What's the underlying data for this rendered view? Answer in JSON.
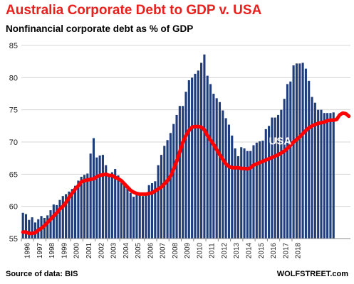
{
  "chart_data": {
    "type": "bar",
    "title": "Australia Corporate Debt to GDP v. USA",
    "subtitle": "Nonfinancial corporate debt as % of GDP",
    "xlabel": "",
    "ylabel": "",
    "ylim": [
      55,
      85
    ],
    "yticks": [
      55,
      60,
      65,
      70,
      75,
      80,
      85
    ],
    "grid": true,
    "legend": "none",
    "x_tick_labels": [
      "1996",
      "1997",
      "1998",
      "1999",
      "2000",
      "2001",
      "2002",
      "2003",
      "2004",
      "2005",
      "2006",
      "2007",
      "2008",
      "2009",
      "2010",
      "2011",
      "2012",
      "2013",
      "2014",
      "2015",
      "2016",
      "2017",
      "2018"
    ],
    "bar_color": "#1f3d7a",
    "line_color": "#ff0000",
    "series": [
      {
        "name": "",
        "type": "bar",
        "frequency": "quarterly",
        "start": "1996-Q1",
        "values": [
          59.0,
          58.8,
          57.9,
          58.3,
          57.5,
          58.0,
          58.5,
          58.2,
          58.6,
          59.4,
          60.3,
          60.2,
          61.0,
          61.6,
          61.9,
          62.3,
          62.7,
          63.2,
          64.0,
          64.6,
          64.9,
          65.1,
          68.2,
          70.6,
          67.6,
          67.9,
          68.0,
          66.4,
          65.0,
          65.3,
          65.8,
          64.8,
          63.7,
          63.3,
          62.8,
          62.1,
          61.5,
          61.9,
          61.8,
          61.6,
          61.8,
          63.3,
          63.6,
          63.9,
          66.4,
          68.0,
          69.4,
          70.3,
          71.4,
          72.8,
          74.2,
          75.6,
          75.6,
          77.8,
          79.6,
          80.0,
          80.6,
          81.1,
          82.3,
          83.6,
          80.3,
          79.0,
          77.5,
          76.8,
          76.2,
          74.9,
          73.7,
          72.7,
          71.0,
          69.0,
          67.8,
          69.2,
          69.0,
          68.6,
          68.6,
          69.5,
          69.9,
          70.1,
          70.2,
          72.0,
          72.5,
          73.8,
          73.8,
          74.2,
          75.0,
          76.7,
          79.0,
          79.4,
          81.9,
          82.2,
          82.2,
          82.3,
          81.4,
          79.5,
          77.0,
          76.1,
          75.0,
          75.0,
          74.5,
          74.5,
          74.5,
          74.6
        ]
      },
      {
        "name": "USA",
        "type": "line",
        "frequency": "quarterly",
        "start": "1996-Q1",
        "values": [
          56.0,
          56.0,
          55.8,
          55.8,
          55.9,
          56.3,
          56.6,
          57.0,
          57.5,
          58.0,
          58.5,
          59.0,
          59.6,
          60.0,
          60.6,
          61.4,
          62.0,
          62.7,
          63.2,
          63.8,
          64.0,
          64.1,
          64.2,
          64.3,
          64.6,
          64.8,
          64.9,
          65.0,
          64.8,
          64.8,
          64.5,
          64.3,
          64.0,
          63.5,
          63.0,
          62.5,
          62.2,
          62.0,
          61.9,
          61.9,
          61.9,
          62.0,
          62.1,
          62.4,
          62.7,
          63.0,
          63.5,
          64.0,
          64.7,
          65.8,
          67.0,
          68.5,
          70.0,
          71.0,
          71.8,
          72.3,
          72.4,
          72.4,
          72.3,
          71.9,
          71.0,
          70.3,
          69.6,
          68.8,
          68.0,
          67.3,
          66.6,
          66.2,
          66.0,
          66.0,
          66.0,
          65.9,
          65.9,
          65.8,
          66.0,
          66.4,
          66.6,
          66.8,
          67.0,
          67.2,
          67.4,
          67.6,
          67.8,
          68.0,
          68.3,
          68.6,
          69.0,
          69.5,
          70.0,
          70.4,
          70.8,
          71.3,
          71.8,
          72.2,
          72.5,
          72.7,
          72.9,
          73.0,
          73.1,
          73.3,
          73.4,
          73.4,
          73.5,
          74.2,
          74.5,
          74.4,
          74.0
        ]
      }
    ],
    "annotations": [
      "USA"
    ]
  },
  "footer": {
    "source": "Source of data: BIS",
    "brand": "WOLFSTREET.com"
  }
}
